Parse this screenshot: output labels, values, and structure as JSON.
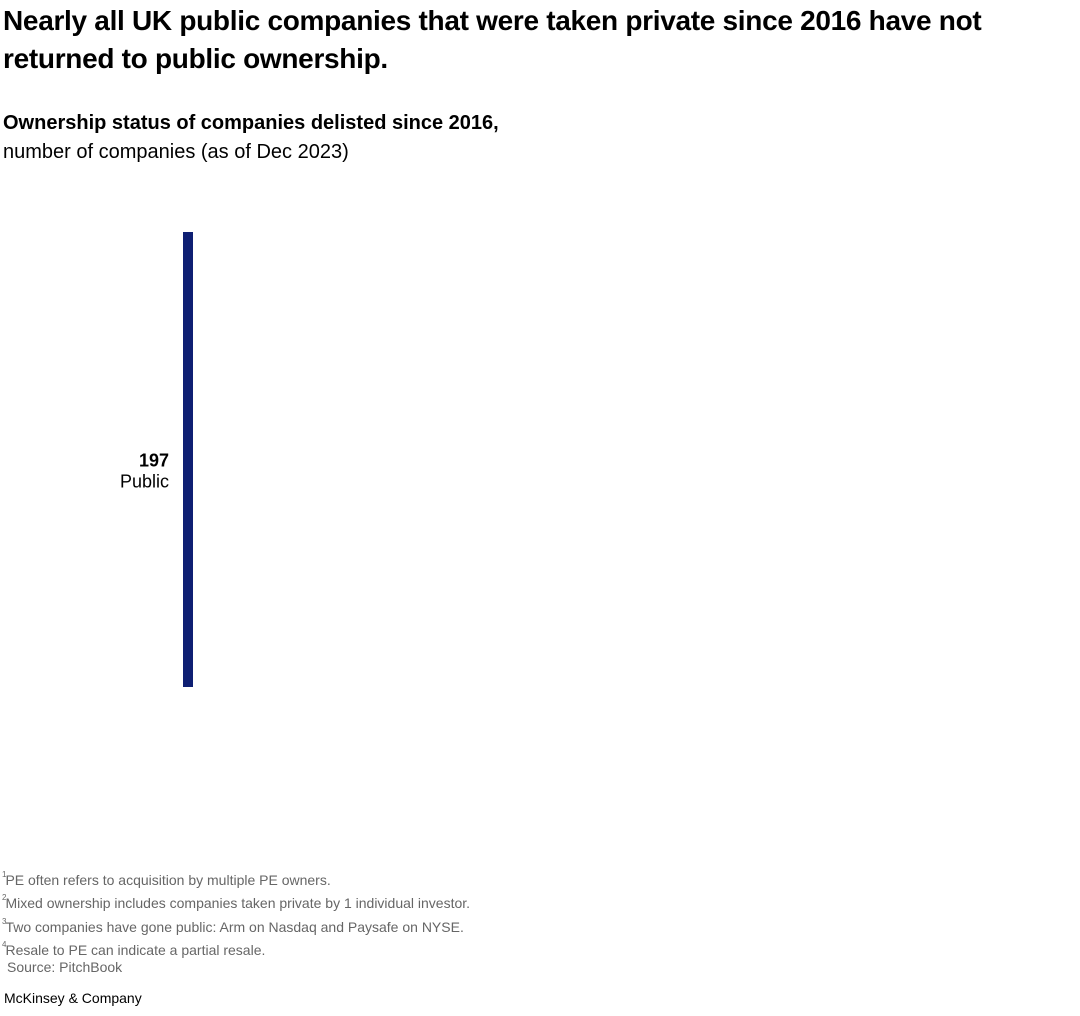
{
  "chart_data": {
    "type": "bar",
    "title": "Nearly all UK public companies that were taken private since 2016 have not returned to public ownership.",
    "subtitle_bold": "Ownership status of companies delisted since 2016,",
    "subtitle": "number of companies (as of Dec 2023)",
    "categories": [
      "Public"
    ],
    "values": [
      197
    ],
    "color": "#0e1f73",
    "footnotes": [
      {
        "mark": "1",
        "text": "PE often refers to acquisition by multiple PE owners."
      },
      {
        "mark": "2",
        "text": "Mixed ownership includes companies taken private by 1 individual investor."
      },
      {
        "mark": "3",
        "text": "Two companies have gone public: Arm on Nasdaq and Paysafe on NYSE."
      },
      {
        "mark": "4",
        "text": "Resale to PE can indicate a partial resale."
      }
    ],
    "source": "Source: PitchBook",
    "brand": "McKinsey & Company"
  }
}
